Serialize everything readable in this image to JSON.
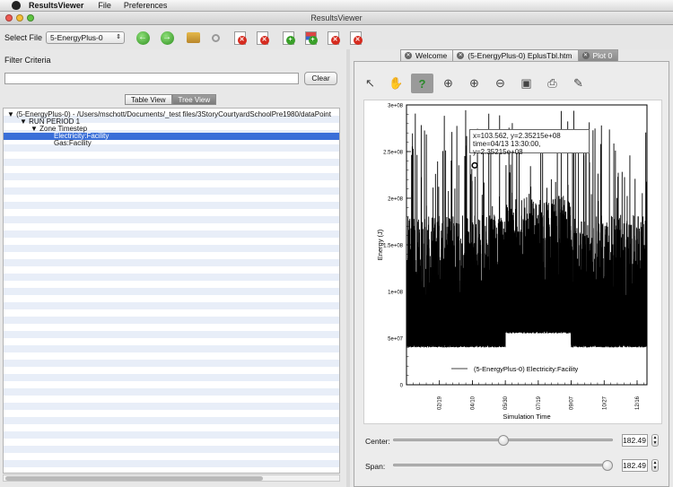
{
  "menubar": {
    "app": "ResultsViewer",
    "items": [
      "File",
      "Preferences"
    ]
  },
  "window": {
    "title": "ResultsViewer"
  },
  "toolbar": {
    "select_label": "Select File",
    "select_value": "5-EnergyPlus-0"
  },
  "filter": {
    "label": "Filter Criteria",
    "value": "",
    "clear_label": "Clear"
  },
  "views": {
    "table": "Table View",
    "tree": "Tree View"
  },
  "tree": {
    "root": "(5-EnergyPlus-0) - /Users/mschott/Documents/_test files/3StoryCourtyardSchoolPre1980/dataPoint",
    "period": "RUN PERIOD 1",
    "timestep": "Zone Timestep",
    "items": [
      "Electricity:Facility",
      "Gas:Facility"
    ]
  },
  "tabs": [
    {
      "label": "Welcome"
    },
    {
      "label": "(5-EnergyPlus-0) EplusTbl.htm"
    },
    {
      "label": "Plot 0"
    }
  ],
  "tooltip": {
    "line1": "x=103.562, y=2.35215e+08",
    "line2": "time=04/13 13:30:00, y=2.35215e+08"
  },
  "chart_data": {
    "type": "line",
    "xlabel": "Simulation Time",
    "ylabel": "Energy (J)",
    "ylim": [
      0,
      300000000
    ],
    "xlim": [
      0,
      365
    ],
    "y_ticks": [
      "3e+08",
      "2.5e+08",
      "2e+08",
      "1.5e+08",
      "1e+08",
      "5e+07",
      "0"
    ],
    "x_ticks": [
      "02/19",
      "04/10",
      "05/30",
      "07/19",
      "09/07",
      "10/27",
      "12/16"
    ],
    "x_tick_values": [
      50,
      100,
      150,
      200,
      250,
      300,
      350
    ],
    "legend": "(5-EnergyPlus-0) Electricity:Facility",
    "legend_position": "bottom-center",
    "highlight": {
      "x": 103.562,
      "y": 235215000
    },
    "series": [
      {
        "name": "(5-EnergyPlus-0) Electricity:Facility",
        "min": 40000000,
        "typical_max": 190000000,
        "max": 295000000
      }
    ]
  },
  "sliders": {
    "center_label": "Center:",
    "center_value": "182.49",
    "center_fraction": 0.5,
    "span_label": "Span:",
    "span_value": "182.49",
    "span_fraction": 1.0
  }
}
